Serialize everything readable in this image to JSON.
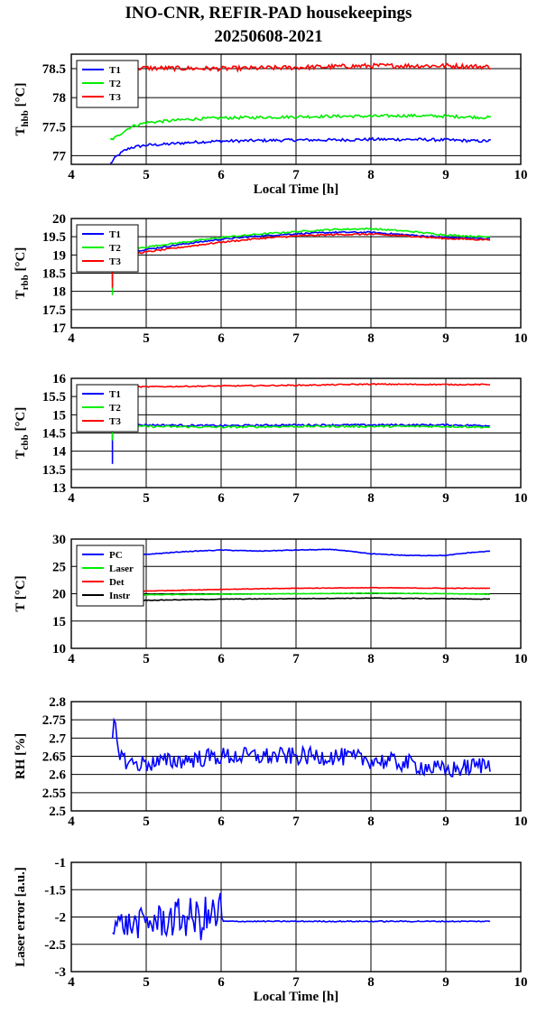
{
  "figure": {
    "title_line1": "INO-CNR, REFIR-PAD housekeepings",
    "title_line2": "20250608-2021"
  },
  "chart_data": [
    {
      "type": "line",
      "ylabel_main": "T",
      "ylabel_sub": "hbb",
      "ylabel_unit": " [°C]",
      "xlabel": "Local Time [h]",
      "xlim": [
        4,
        10
      ],
      "ylim": [
        76.85,
        78.75
      ],
      "xticks": [
        4,
        5,
        6,
        7,
        8,
        9,
        10
      ],
      "yticks": [
        77,
        77.5,
        78,
        78.5
      ],
      "ytick_labels": [
        "77",
        "77.5",
        "78",
        "78.5"
      ],
      "grid": true,
      "legend_position": "top-left",
      "series": [
        {
          "name": "T1",
          "color": "#0000ff",
          "x": [
            4.52,
            4.6,
            4.7,
            4.8,
            5.0,
            5.3,
            5.6,
            6.0,
            6.5,
            7.0,
            7.5,
            8.0,
            8.5,
            9.0,
            9.5,
            9.6
          ],
          "y": [
            76.86,
            76.98,
            77.08,
            77.14,
            77.18,
            77.2,
            77.23,
            77.25,
            77.26,
            77.27,
            77.27,
            77.28,
            77.28,
            77.27,
            77.25,
            77.26
          ],
          "noise": 0.025
        },
        {
          "name": "T2",
          "color": "#00ee00",
          "x": [
            4.52,
            4.6,
            4.7,
            4.8,
            5.0,
            5.3,
            5.6,
            6.0,
            6.5,
            7.0,
            7.5,
            8.0,
            8.5,
            9.0,
            9.5,
            9.6
          ],
          "y": [
            77.27,
            77.32,
            77.42,
            77.5,
            77.57,
            77.6,
            77.63,
            77.65,
            77.66,
            77.67,
            77.68,
            77.68,
            77.69,
            77.68,
            77.66,
            77.66
          ],
          "noise": 0.025
        },
        {
          "name": "T3",
          "color": "#ff0000",
          "x": [
            4.52,
            5.0,
            6.0,
            7.0,
            8.0,
            9.0,
            9.6
          ],
          "y": [
            78.5,
            78.51,
            78.5,
            78.52,
            78.55,
            78.55,
            78.53
          ],
          "noise": 0.04
        }
      ]
    },
    {
      "type": "line",
      "ylabel_main": "T",
      "ylabel_sub": "rbb",
      "ylabel_unit": " [°C]",
      "xlabel": "",
      "xlim": [
        4,
        10
      ],
      "ylim": [
        17,
        20
      ],
      "xticks": [
        4,
        5,
        6,
        7,
        8,
        9,
        10
      ],
      "yticks": [
        17,
        17.5,
        18,
        18.5,
        19,
        19.5,
        20
      ],
      "ytick_labels": [
        "17",
        "17.5",
        "18",
        "18.5",
        "19",
        "19.5",
        "20"
      ],
      "grid": true,
      "legend_position": "top-left",
      "series": [
        {
          "name": "T1",
          "color": "#0000ff",
          "x": [
            4.55,
            4.55,
            4.8,
            5.0,
            5.5,
            6.0,
            6.5,
            7.0,
            7.5,
            8.0,
            8.5,
            9.0,
            9.5,
            9.6
          ],
          "y": [
            18.3,
            19.05,
            19.1,
            19.15,
            19.3,
            19.43,
            19.52,
            19.58,
            19.62,
            19.62,
            19.55,
            19.48,
            19.45,
            19.45
          ],
          "noise": 0.02
        },
        {
          "name": "T2",
          "color": "#00ee00",
          "x": [
            4.55,
            4.55,
            4.8,
            5.0,
            5.5,
            6.0,
            6.5,
            7.0,
            7.5,
            8.0,
            8.5,
            9.0,
            9.5,
            9.6
          ],
          "y": [
            17.9,
            19.1,
            19.15,
            19.22,
            19.35,
            19.48,
            19.57,
            19.64,
            19.7,
            19.72,
            19.65,
            19.55,
            19.5,
            19.5
          ],
          "noise": 0.02
        },
        {
          "name": "T3",
          "color": "#ff0000",
          "x": [
            4.55,
            4.55,
            4.8,
            5.0,
            5.5,
            6.0,
            6.5,
            7.0,
            7.5,
            8.0,
            8.5,
            9.0,
            9.5,
            9.6
          ],
          "y": [
            18.1,
            19.0,
            19.03,
            19.08,
            19.22,
            19.35,
            19.45,
            19.52,
            19.56,
            19.57,
            19.52,
            19.45,
            19.42,
            19.43
          ],
          "noise": 0.02
        }
      ]
    },
    {
      "type": "line",
      "ylabel_main": "T",
      "ylabel_sub": "cbb",
      "ylabel_unit": " [°C]",
      "xlabel": "",
      "xlim": [
        4,
        10
      ],
      "ylim": [
        13,
        16
      ],
      "xticks": [
        4,
        5,
        6,
        7,
        8,
        9,
        10
      ],
      "yticks": [
        13,
        13.5,
        14,
        14.5,
        15,
        15.5,
        16
      ],
      "ytick_labels": [
        "13",
        "13.5",
        "14",
        "14.5",
        "15",
        "15.5",
        "16"
      ],
      "grid": true,
      "legend_position": "top-left",
      "series": [
        {
          "name": "T1",
          "color": "#0000ff",
          "x": [
            4.55,
            4.55,
            4.6,
            5.0,
            6.0,
            7.0,
            8.0,
            9.0,
            9.6
          ],
          "y": [
            13.65,
            14.65,
            14.72,
            14.72,
            14.7,
            14.72,
            14.72,
            14.72,
            14.7
          ],
          "noise": 0.025
        },
        {
          "name": "T2",
          "color": "#00ee00",
          "x": [
            4.55,
            4.55,
            4.6,
            5.0,
            6.0,
            7.0,
            8.0,
            9.0,
            9.6
          ],
          "y": [
            14.3,
            14.62,
            14.68,
            14.68,
            14.66,
            14.68,
            14.68,
            14.68,
            14.66
          ],
          "noise": 0.025
        },
        {
          "name": "T3",
          "color": "#ff0000",
          "x": [
            4.55,
            4.6,
            5.0,
            6.0,
            7.0,
            8.0,
            9.0,
            9.6
          ],
          "y": [
            15.75,
            15.76,
            15.77,
            15.79,
            15.81,
            15.84,
            15.83,
            15.83
          ],
          "noise": 0.015
        }
      ]
    },
    {
      "type": "line",
      "ylabel_main": "T [°C]",
      "ylabel_sub": "",
      "ylabel_unit": "",
      "xlabel": "",
      "xlim": [
        4,
        10
      ],
      "ylim": [
        10,
        30
      ],
      "xticks": [
        4,
        5,
        6,
        7,
        8,
        9,
        10
      ],
      "yticks": [
        10,
        15,
        20,
        25,
        30
      ],
      "ytick_labels": [
        "10",
        "15",
        "20",
        "25",
        "30"
      ],
      "grid": true,
      "legend_position": "top-left",
      "series": [
        {
          "name": "PC",
          "color": "#0000ff",
          "x": [
            4.55,
            5.0,
            5.5,
            6.0,
            6.5,
            7.0,
            7.5,
            8.0,
            8.5,
            9.0,
            9.3,
            9.6
          ],
          "y": [
            26.8,
            27.2,
            27.7,
            28.0,
            27.8,
            28.0,
            28.1,
            27.3,
            27.0,
            27.0,
            27.5,
            27.8
          ],
          "noise": 0.06
        },
        {
          "name": "Laser",
          "color": "#00ee00",
          "x": [
            4.55,
            5.0,
            6.0,
            7.0,
            8.0,
            9.0,
            9.6
          ],
          "y": [
            19.6,
            19.8,
            19.9,
            20.0,
            20.1,
            20.0,
            19.9
          ],
          "noise": 0.05
        },
        {
          "name": "Det",
          "color": "#ff0000",
          "x": [
            4.55,
            5.0,
            6.0,
            7.0,
            8.0,
            9.0,
            9.6
          ],
          "y": [
            20.3,
            20.5,
            20.8,
            21.0,
            21.1,
            21.0,
            21.0
          ],
          "noise": 0.05
        },
        {
          "name": "Instr",
          "color": "#000000",
          "x": [
            4.55,
            5.0,
            6.0,
            7.0,
            8.0,
            9.0,
            9.6
          ],
          "y": [
            18.6,
            18.8,
            19.0,
            19.1,
            19.2,
            19.1,
            19.0
          ],
          "noise": 0.05
        }
      ]
    },
    {
      "type": "line",
      "ylabel_main": "RH [%]",
      "ylabel_sub": "",
      "ylabel_unit": "",
      "xlabel": "",
      "xlim": [
        4,
        10
      ],
      "ylim": [
        2.5,
        2.8
      ],
      "xticks": [
        4,
        5,
        6,
        7,
        8,
        9,
        10
      ],
      "yticks": [
        2.5,
        2.55,
        2.6,
        2.65,
        2.7,
        2.75,
        2.8
      ],
      "ytick_labels": [
        "2.5",
        "2.55",
        "2.6",
        "2.65",
        "2.7",
        "2.75",
        "2.8"
      ],
      "grid": true,
      "legend_position": "none",
      "series": [
        {
          "name": "",
          "color": "#0000ff",
          "x": [
            4.55,
            4.58,
            4.62,
            4.7,
            4.8,
            5.0,
            5.5,
            6.0,
            6.5,
            7.0,
            7.5,
            8.0,
            8.5,
            9.0,
            9.3,
            9.6
          ],
          "y": [
            2.7,
            2.74,
            2.68,
            2.64,
            2.63,
            2.63,
            2.64,
            2.65,
            2.65,
            2.65,
            2.65,
            2.64,
            2.63,
            2.61,
            2.62,
            2.63
          ],
          "noise": 0.025
        }
      ]
    },
    {
      "type": "line",
      "ylabel_main": "Laser error [a.u.]",
      "ylabel_sub": "",
      "ylabel_unit": "",
      "xlabel": "Local Time [h]",
      "xlim": [
        4,
        10
      ],
      "ylim": [
        -3,
        -1
      ],
      "xticks": [
        4,
        5,
        6,
        7,
        8,
        9,
        10
      ],
      "yticks": [
        -3,
        -2.5,
        -2,
        -1.5,
        -1
      ],
      "ytick_labels": [
        "-3",
        "-2.5",
        "-2",
        "-1.5",
        "-1"
      ],
      "grid": true,
      "legend_position": "none",
      "series": [
        {
          "name": "",
          "color": "#0000ff",
          "x": [
            4.55,
            4.8,
            5.0,
            5.3,
            5.5,
            5.7,
            5.9,
            5.99,
            6.02,
            6.5,
            7.0,
            8.0,
            9.0,
            9.6
          ],
          "y": [
            -2.1,
            -2.15,
            -2.1,
            -2.05,
            -2.0,
            -2.05,
            -2.0,
            -1.9,
            -2.08,
            -2.08,
            -2.08,
            -2.08,
            -2.08,
            -2.08
          ],
          "noise": 0.01,
          "noisy_until": 6.0,
          "noisy_amp": [
            0.22,
            0.45
          ]
        }
      ]
    }
  ]
}
